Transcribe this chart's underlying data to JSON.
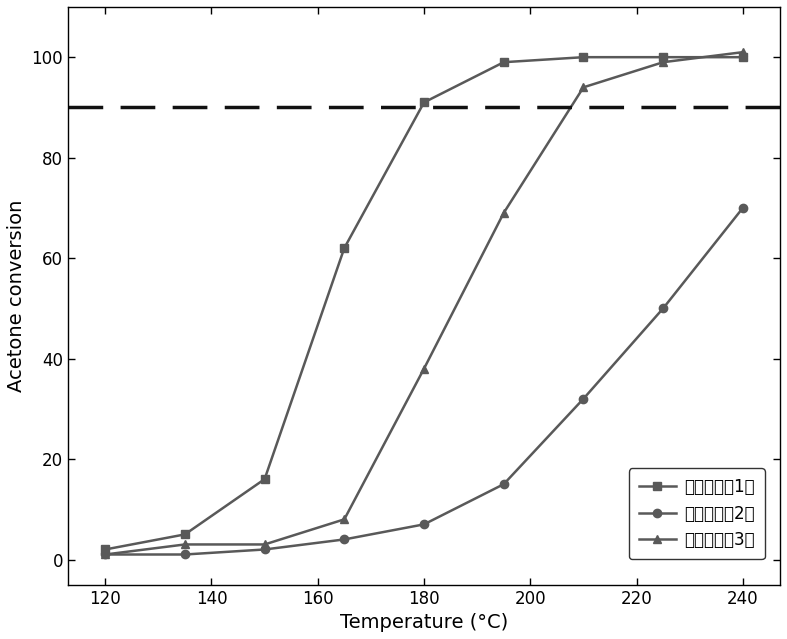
{
  "series": [
    {
      "label": "实施例一（1）",
      "x": [
        120,
        135,
        150,
        165,
        180,
        195,
        210,
        225,
        240
      ],
      "y": [
        2,
        5,
        16,
        62,
        91,
        99,
        100,
        100,
        100
      ],
      "marker": "s",
      "color": "#595959",
      "linewidth": 1.8,
      "markersize": 6
    },
    {
      "label": "实施例七（2）",
      "x": [
        120,
        135,
        150,
        165,
        180,
        195,
        210,
        225,
        240
      ],
      "y": [
        1,
        1,
        2,
        4,
        7,
        15,
        32,
        50,
        70
      ],
      "marker": "o",
      "color": "#595959",
      "linewidth": 1.8,
      "markersize": 6
    },
    {
      "label": "实施例八（3）",
      "x": [
        120,
        135,
        150,
        165,
        180,
        195,
        210,
        225,
        240
      ],
      "y": [
        1,
        3,
        3,
        8,
        38,
        69,
        94,
        99,
        101
      ],
      "marker": "^",
      "color": "#595959",
      "linewidth": 1.8,
      "markersize": 6
    }
  ],
  "dashed_line_y": 90,
  "xlabel": "Temperature (°C)",
  "ylabel": "Acetone conversion",
  "xlim": [
    113,
    247
  ],
  "ylim": [
    -5,
    110
  ],
  "xticks": [
    120,
    140,
    160,
    180,
    200,
    220,
    240
  ],
  "yticks": [
    0,
    20,
    40,
    60,
    80,
    100
  ],
  "background_color": "#ffffff",
  "dashed_color": "#111111",
  "legend_labels": [
    "实施例一（1）",
    "实施例七（2）",
    "实施例八（3）"
  ]
}
